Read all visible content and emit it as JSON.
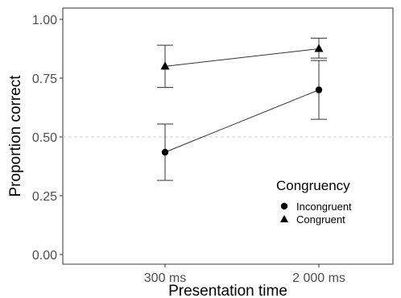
{
  "chart_data": {
    "type": "scatter",
    "title": "",
    "xlabel": "Presentation time",
    "ylabel": "Proportion correct",
    "categories": [
      "300 ms",
      "2 000 ms"
    ],
    "ylim": [
      0,
      1
    ],
    "yticks": [
      "0.00",
      "0.25",
      "0.50",
      "0.75",
      "1.00"
    ],
    "ytick_values": [
      0,
      0.25,
      0.5,
      0.75,
      1.0
    ],
    "reference_line": {
      "y": 0.5,
      "style": "dashed"
    },
    "grid": false,
    "legend": {
      "title": "Congruency",
      "placement": "inside-bottom-right"
    },
    "series": [
      {
        "name": "Incongruent",
        "marker": "circle",
        "values": [
          0.435,
          0.7
        ],
        "error_low": [
          0.315,
          0.575
        ],
        "error_high": [
          0.555,
          0.825
        ]
      },
      {
        "name": "Congruent",
        "marker": "triangle",
        "values": [
          0.8,
          0.875
        ],
        "error_low": [
          0.71,
          0.835
        ],
        "error_high": [
          0.89,
          0.92
        ]
      }
    ]
  }
}
